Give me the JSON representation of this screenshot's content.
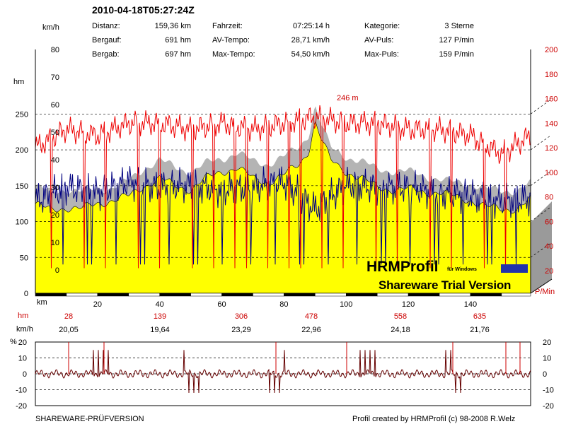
{
  "header": {
    "title": "2010-04-18T05:27:24Z",
    "stats": [
      {
        "label": "Distanz:",
        "value": "159,36 km"
      },
      {
        "label": "Bergauf:",
        "value": "691 hm"
      },
      {
        "label": "Bergab:",
        "value": "697 hm"
      },
      {
        "label": "Fahrzeit:",
        "value": "07:25:14 h"
      },
      {
        "label": "AV-Tempo:",
        "value": "28,71 km/h"
      },
      {
        "label": "Max-Tempo:",
        "value": "54,50 km/h"
      },
      {
        "label": "Kategorie:",
        "value": "3 Sterne"
      },
      {
        "label": "AV-Puls:",
        "value": "127 P/min"
      },
      {
        "label": "Max-Puls:",
        "value": "159 P/min"
      }
    ]
  },
  "watermark": {
    "brand": "HRMProfil",
    "brand_sub": "für Windows",
    "trial": "Shareware Trial  Version"
  },
  "footer": {
    "left": "SHAREWARE-PRÜFVERSION",
    "right": "Profil created by HRMProfil (c) 98-2008 R.Welz"
  },
  "colors": {
    "altitude_fill": "#ffff00",
    "pulse": "#ee0000",
    "speed": "#000080",
    "shadow": "#b4b4b4",
    "side_panel": "#9a9a9a"
  },
  "chart_data": [
    {
      "type": "area",
      "units": {
        "left_speed": "km/h",
        "left_altitude": "hm",
        "right_pulse": "P/Min",
        "x": "km"
      },
      "x_ticks": [
        20,
        40,
        60,
        80,
        100,
        120,
        140
      ],
      "x_label": "km",
      "xlim": [
        0,
        159.36
      ],
      "altitude_ticks": [
        0,
        50,
        100,
        150,
        200,
        250
      ],
      "altitude_ylim": [
        0,
        340
      ],
      "speed_ticks": [
        0,
        10,
        20,
        30,
        40,
        50,
        60,
        70,
        80
      ],
      "pulse_ticks": [
        20,
        40,
        60,
        80,
        100,
        120,
        140,
        160,
        180,
        200
      ],
      "peak_annotation": "246 m",
      "series": [
        {
          "name": "hm",
          "x": [
            0,
            5,
            10,
            15,
            20,
            25,
            30,
            35,
            40,
            45,
            50,
            55,
            60,
            65,
            70,
            75,
            80,
            85,
            88,
            90,
            92,
            95,
            100,
            105,
            110,
            115,
            120,
            125,
            130,
            135,
            140,
            145,
            150,
            155,
            159.36
          ],
          "values": [
            125,
            115,
            120,
            118,
            125,
            130,
            135,
            150,
            160,
            150,
            145,
            160,
            170,
            175,
            160,
            155,
            165,
            180,
            200,
            240,
            215,
            185,
            170,
            160,
            148,
            145,
            145,
            142,
            140,
            135,
            130,
            120,
            118,
            118,
            130
          ]
        },
        {
          "name": "pulse",
          "x": [
            0,
            10,
            20,
            30,
            40,
            50,
            60,
            70,
            80,
            90,
            100,
            110,
            120,
            130,
            140,
            150,
            159.36
          ],
          "values": [
            120,
            135,
            130,
            140,
            140,
            135,
            140,
            135,
            140,
            145,
            140,
            140,
            135,
            135,
            130,
            115,
            130
          ]
        },
        {
          "name": "speed",
          "x": [
            0,
            10,
            20,
            30,
            40,
            50,
            60,
            70,
            80,
            90,
            100,
            110,
            120,
            130,
            140,
            150,
            159.36
          ],
          "values": [
            25,
            30,
            28,
            32,
            30,
            31,
            29,
            30,
            32,
            22,
            31,
            30,
            30,
            28,
            27,
            25,
            26
          ]
        }
      ],
      "axis_rows": {
        "hm_label": "hm",
        "hm_values": [
          "28",
          "139",
          "306",
          "478",
          "558",
          "635"
        ],
        "kmh_label": "km/h",
        "kmh_values": [
          "20,05",
          "19,64",
          "23,29",
          "22,96",
          "24,18",
          "21,76"
        ]
      }
    },
    {
      "type": "line",
      "title": "",
      "ylabel": "%",
      "y_ticks": [
        -20,
        -10,
        0,
        10,
        20
      ],
      "ylim": [
        -20,
        20
      ],
      "description": "gradient percent"
    }
  ]
}
